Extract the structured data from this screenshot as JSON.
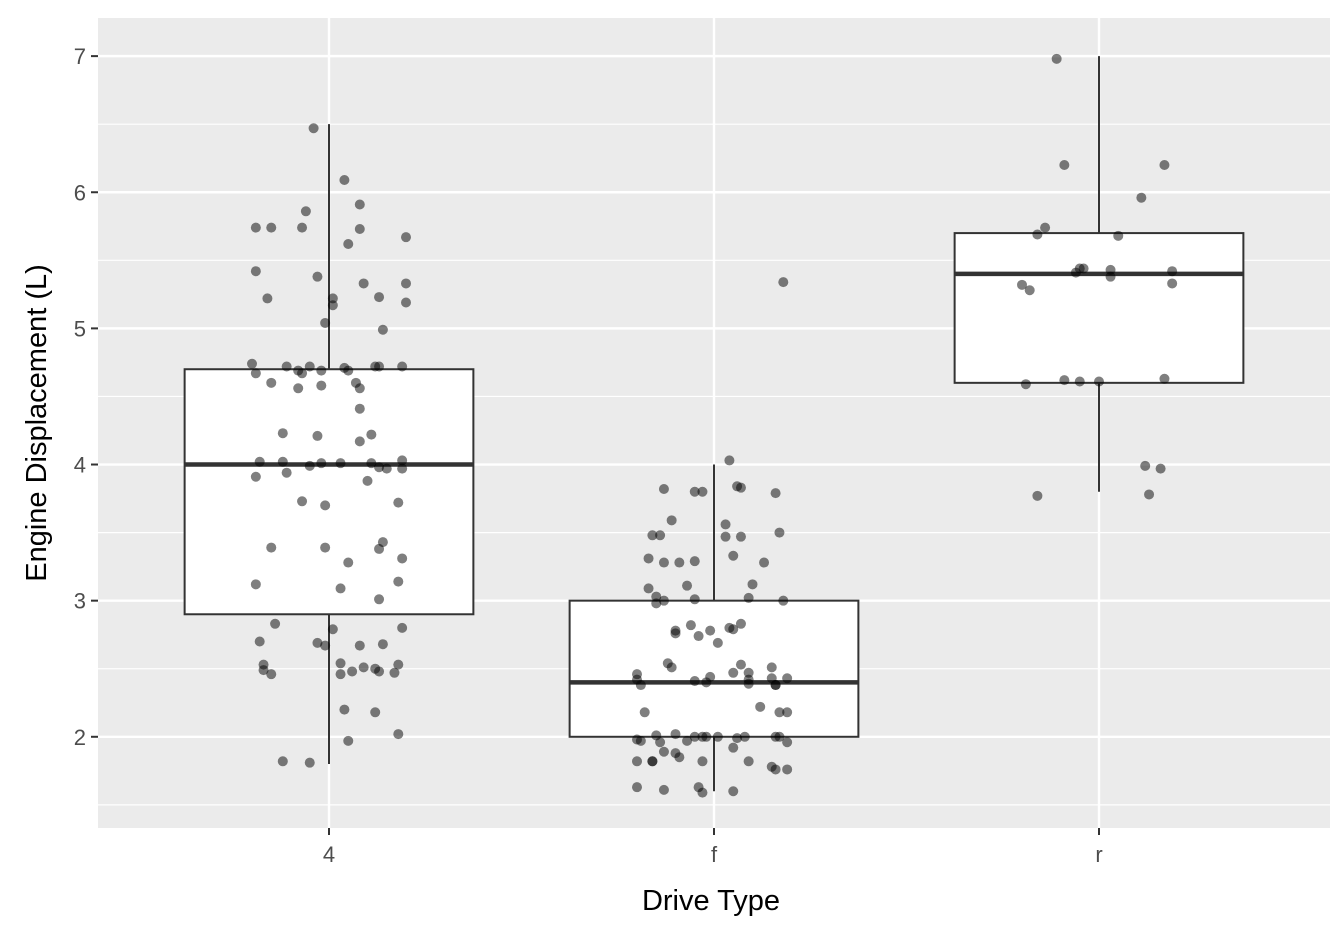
{
  "chart_data": {
    "type": "boxplot",
    "title": "",
    "xlabel": "Drive Type",
    "ylabel": "Engine Displacement (L)",
    "xlim": [
      0.4,
      3.6
    ],
    "ylim": [
      1.33,
      7.28
    ],
    "yticks": [
      2,
      3,
      4,
      5,
      6,
      7
    ],
    "grid": true,
    "colors": {
      "panel": "#EBEBEB",
      "grid": "#FFFFFF",
      "box_fill": "#FFFFFF",
      "box_line": "#333333",
      "point": "#000000"
    },
    "point_alpha": 0.5,
    "categories": [
      "4",
      "f",
      "r"
    ],
    "boxes": [
      {
        "category": "4",
        "whisker_low": 1.8,
        "q1": 2.9,
        "median": 4.0,
        "q3": 4.7,
        "whisker_high": 6.5
      },
      {
        "category": "f",
        "whisker_low": 1.6,
        "q1": 2.0,
        "median": 2.4,
        "q3": 3.0,
        "whisker_high": 4.0
      },
      {
        "category": "r",
        "whisker_low": 3.8,
        "q1": 4.6,
        "median": 5.4,
        "q3": 5.7,
        "whisker_high": 7.0
      }
    ],
    "jitter_points": [
      [
        [
          -0.04,
          6.47
        ],
        [
          0.04,
          6.09
        ],
        [
          -0.19,
          5.74
        ],
        [
          -0.15,
          5.74
        ],
        [
          -0.06,
          5.86
        ],
        [
          -0.07,
          5.74
        ],
        [
          0.08,
          5.91
        ],
        [
          0.08,
          5.73
        ],
        [
          0.2,
          5.67
        ],
        [
          0.05,
          5.62
        ],
        [
          -0.19,
          5.42
        ],
        [
          -0.03,
          5.38
        ],
        [
          -0.16,
          5.22
        ],
        [
          0.01,
          5.22
        ],
        [
          0.01,
          5.17
        ],
        [
          0.09,
          5.33
        ],
        [
          0.13,
          5.23
        ],
        [
          0.2,
          5.33
        ],
        [
          0.2,
          5.19
        ],
        [
          -0.01,
          5.04
        ],
        [
          0.14,
          4.99
        ],
        [
          -0.2,
          4.74
        ],
        [
          -0.19,
          4.67
        ],
        [
          -0.11,
          4.72
        ],
        [
          -0.08,
          4.69
        ],
        [
          -0.07,
          4.67
        ],
        [
          -0.05,
          4.72
        ],
        [
          -0.02,
          4.69
        ],
        [
          0.04,
          4.71
        ],
        [
          0.05,
          4.69
        ],
        [
          0.12,
          4.72
        ],
        [
          0.13,
          4.72
        ],
        [
          0.19,
          4.72
        ],
        [
          -0.15,
          4.6
        ],
        [
          -0.08,
          4.56
        ],
        [
          -0.02,
          4.58
        ],
        [
          0.07,
          4.6
        ],
        [
          0.08,
          4.56
        ],
        [
          0.08,
          4.41
        ],
        [
          -0.12,
          4.23
        ],
        [
          -0.03,
          4.21
        ],
        [
          0.08,
          4.17
        ],
        [
          0.11,
          4.22
        ],
        [
          -0.18,
          4.02
        ],
        [
          -0.12,
          4.02
        ],
        [
          -0.02,
          4.01
        ],
        [
          0.03,
          4.01
        ],
        [
          -0.05,
          3.99
        ],
        [
          0.11,
          4.01
        ],
        [
          0.13,
          3.98
        ],
        [
          0.15,
          3.97
        ],
        [
          0.19,
          4.03
        ],
        [
          0.19,
          3.97
        ],
        [
          -0.19,
          3.91
        ],
        [
          -0.11,
          3.94
        ],
        [
          0.1,
          3.88
        ],
        [
          -0.07,
          3.73
        ],
        [
          -0.01,
          3.7
        ],
        [
          0.18,
          3.72
        ],
        [
          0.14,
          3.43
        ],
        [
          0.13,
          3.38
        ],
        [
          -0.15,
          3.39
        ],
        [
          -0.01,
          3.39
        ],
        [
          0.05,
          3.28
        ],
        [
          0.19,
          3.31
        ],
        [
          -0.19,
          3.12
        ],
        [
          0.03,
          3.09
        ],
        [
          0.18,
          3.14
        ],
        [
          0.13,
          3.01
        ],
        [
          -0.14,
          2.83
        ],
        [
          0.01,
          2.79
        ],
        [
          0.19,
          2.8
        ],
        [
          -0.18,
          2.7
        ],
        [
          -0.03,
          2.69
        ],
        [
          -0.01,
          2.67
        ],
        [
          0.08,
          2.67
        ],
        [
          0.14,
          2.68
        ],
        [
          -0.17,
          2.53
        ],
        [
          -0.17,
          2.49
        ],
        [
          -0.15,
          2.46
        ],
        [
          0.03,
          2.54
        ],
        [
          0.06,
          2.48
        ],
        [
          0.03,
          2.46
        ],
        [
          0.09,
          2.51
        ],
        [
          0.12,
          2.5
        ],
        [
          0.13,
          2.48
        ],
        [
          0.18,
          2.53
        ],
        [
          0.17,
          2.47
        ],
        [
          0.04,
          2.2
        ],
        [
          0.12,
          2.18
        ],
        [
          0.05,
          1.97
        ],
        [
          0.18,
          2.02
        ],
        [
          -0.12,
          1.82
        ],
        [
          -0.05,
          1.81
        ]
      ],
      [
        [
          0.04,
          4.03
        ],
        [
          -0.13,
          3.82
        ],
        [
          -0.05,
          3.8
        ],
        [
          -0.03,
          3.8
        ],
        [
          0.06,
          3.84
        ],
        [
          0.07,
          3.83
        ],
        [
          0.16,
          3.79
        ],
        [
          -0.11,
          3.59
        ],
        [
          0.03,
          3.56
        ],
        [
          -0.16,
          3.48
        ],
        [
          -0.14,
          3.48
        ],
        [
          0.03,
          3.47
        ],
        [
          0.07,
          3.47
        ],
        [
          0.17,
          3.5
        ],
        [
          -0.17,
          3.31
        ],
        [
          -0.13,
          3.28
        ],
        [
          -0.09,
          3.28
        ],
        [
          -0.05,
          3.29
        ],
        [
          0.05,
          3.33
        ],
        [
          0.13,
          3.28
        ],
        [
          -0.17,
          3.09
        ],
        [
          -0.07,
          3.11
        ],
        [
          0.1,
          3.12
        ],
        [
          -0.15,
          3.03
        ],
        [
          -0.13,
          3.0
        ],
        [
          -0.15,
          2.98
        ],
        [
          -0.05,
          3.01
        ],
        [
          0.09,
          3.02
        ],
        [
          0.18,
          3.0
        ],
        [
          -0.1,
          2.78
        ],
        [
          -0.06,
          2.82
        ],
        [
          -0.01,
          2.78
        ],
        [
          0.07,
          2.83
        ],
        [
          0.04,
          2.8
        ],
        [
          0.05,
          2.79
        ],
        [
          -0.04,
          2.74
        ],
        [
          0.01,
          2.69
        ],
        [
          -0.1,
          2.76
        ],
        [
          -0.12,
          2.54
        ],
        [
          -0.11,
          2.51
        ],
        [
          0.07,
          2.53
        ],
        [
          0.15,
          2.51
        ],
        [
          -0.2,
          2.46
        ],
        [
          0.05,
          2.47
        ],
        [
          0.09,
          2.47
        ],
        [
          -0.2,
          2.42
        ],
        [
          -0.05,
          2.41
        ],
        [
          -0.01,
          2.44
        ],
        [
          -0.02,
          2.4
        ],
        [
          0.09,
          2.42
        ],
        [
          0.09,
          2.39
        ],
        [
          0.15,
          2.43
        ],
        [
          0.19,
          2.43
        ],
        [
          -0.19,
          2.38
        ],
        [
          0.16,
          2.38
        ],
        [
          0.16,
          2.38
        ],
        [
          -0.18,
          2.18
        ],
        [
          0.12,
          2.22
        ],
        [
          0.17,
          2.18
        ],
        [
          0.19,
          2.18
        ],
        [
          -0.15,
          2.01
        ],
        [
          -0.2,
          1.98
        ],
        [
          -0.19,
          1.97
        ],
        [
          -0.1,
          2.02
        ],
        [
          -0.14,
          1.96
        ],
        [
          -0.07,
          1.97
        ],
        [
          -0.05,
          2.0
        ],
        [
          -0.03,
          2.0
        ],
        [
          -0.02,
          2.0
        ],
        [
          0.01,
          2.0
        ],
        [
          0.08,
          2.0
        ],
        [
          0.06,
          1.99
        ],
        [
          0.16,
          2.0
        ],
        [
          0.17,
          2.0
        ],
        [
          0.19,
          1.96
        ],
        [
          -0.13,
          1.89
        ],
        [
          -0.1,
          1.88
        ],
        [
          0.05,
          1.92
        ],
        [
          -0.2,
          1.82
        ],
        [
          -0.16,
          1.82
        ],
        [
          -0.16,
          1.82
        ],
        [
          -0.09,
          1.85
        ],
        [
          -0.03,
          1.82
        ],
        [
          0.09,
          1.82
        ],
        [
          0.15,
          1.78
        ],
        [
          0.16,
          1.76
        ],
        [
          0.19,
          1.76
        ],
        [
          -0.2,
          1.63
        ],
        [
          -0.13,
          1.61
        ],
        [
          -0.04,
          1.63
        ],
        [
          -0.03,
          1.59
        ],
        [
          0.05,
          1.6
        ],
        [
          0.18,
          5.34
        ]
      ],
      [
        [
          -0.11,
          6.98
        ],
        [
          -0.09,
          6.2
        ],
        [
          0.17,
          6.2
        ],
        [
          0.11,
          5.96
        ],
        [
          -0.14,
          5.74
        ],
        [
          -0.16,
          5.69
        ],
        [
          0.05,
          5.68
        ],
        [
          -0.2,
          5.32
        ],
        [
          -0.18,
          5.28
        ],
        [
          -0.06,
          5.41
        ],
        [
          -0.05,
          5.44
        ],
        [
          -0.04,
          5.44
        ],
        [
          0.03,
          5.38
        ],
        [
          0.03,
          5.43
        ],
        [
          0.19,
          5.42
        ],
        [
          0.19,
          5.33
        ],
        [
          -0.19,
          4.59
        ],
        [
          -0.09,
          4.62
        ],
        [
          -0.05,
          4.61
        ],
        [
          0.0,
          4.61
        ],
        [
          0.17,
          4.63
        ],
        [
          0.12,
          3.99
        ],
        [
          0.16,
          3.97
        ],
        [
          -0.16,
          3.77
        ],
        [
          0.13,
          3.78
        ]
      ]
    ]
  }
}
